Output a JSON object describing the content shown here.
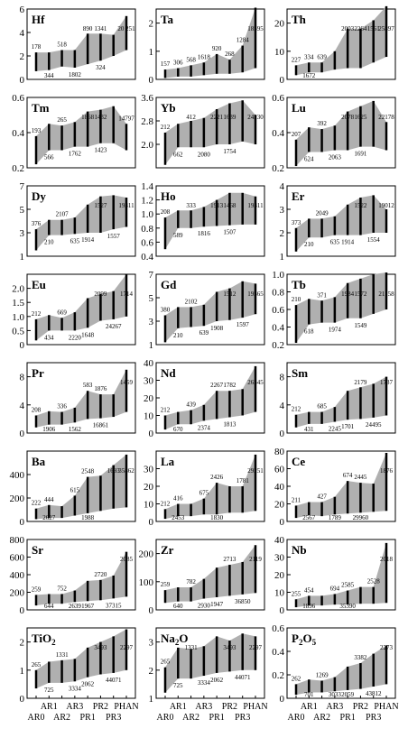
{
  "chart_data": {
    "type": "area",
    "description_layout": "8 rows x 3 columns of small range-band panels",
    "x_ticks_top": [
      "AR1",
      "AR3",
      "PR2",
      "PHAN"
    ],
    "x_ticks_bottom": [
      "AR0",
      "AR2",
      "PR1",
      "PR3"
    ],
    "x_order": [
      "AR0",
      "AR1",
      "AR2",
      "AR3",
      "PR1",
      "PR2",
      "PR3",
      "PHAN"
    ],
    "colors": {
      "band": "#b0b0b0",
      "line": "#000000"
    },
    "panels": [
      {
        "title": "Hf",
        "sub": "",
        "ylim": [
          0,
          6
        ],
        "yticks": [
          "0",
          "2",
          "4",
          "6"
        ],
        "upper": [
          2.3,
          2.3,
          2.5,
          2.5,
          3.9,
          3.9,
          3.8,
          5.4
        ],
        "lower": [
          0.7,
          0.8,
          1.1,
          1.0,
          1.3,
          1.6,
          2.0,
          2.5
        ],
        "top_labels": [
          "178",
          "518",
          "890",
          "1341",
          "20 251"
        ],
        "bottom_labels": [
          "344",
          "1802",
          "324"
        ]
      },
      {
        "title": "Ta",
        "sub": "",
        "ylim": [
          0,
          2.5
        ],
        "yticks": [
          "0",
          "1",
          "2"
        ],
        "upper": [
          0.35,
          0.4,
          0.5,
          0.6,
          0.9,
          0.7,
          1.2,
          2.55
        ],
        "lower": [
          0.05,
          0.1,
          0.1,
          0.15,
          0.2,
          0.2,
          0.25,
          0.4
        ],
        "top_labels": [
          "157",
          "306",
          "568",
          "1618",
          "920",
          "268",
          "1284",
          "18595"
        ],
        "bottom_labels": []
      },
      {
        "title": "Th",
        "sub": "",
        "ylim": [
          0,
          25
        ],
        "yticks": [
          "0",
          "10",
          "20"
        ],
        "upper": [
          5,
          6,
          6,
          10,
          18,
          18,
          21,
          26
        ],
        "lower": [
          1.5,
          2.5,
          2.5,
          3.5,
          4,
          4,
          6,
          8
        ],
        "top_labels": [
          "227",
          "334",
          "639",
          "2003",
          "2264",
          "1561",
          "25897"
        ],
        "bottom_labels": [
          "1672"
        ]
      },
      {
        "title": "Tm",
        "sub": "",
        "ylim": [
          0.2,
          0.6
        ],
        "yticks": [
          "0.2",
          "0.4",
          "0.6"
        ],
        "upper": [
          0.38,
          0.45,
          0.44,
          0.46,
          0.52,
          0.53,
          0.55,
          0.45
        ],
        "lower": [
          0.22,
          0.3,
          0.3,
          0.32,
          0.32,
          0.34,
          0.34,
          0.3
        ],
        "top_labels": [
          "193",
          "265",
          "1868",
          "1432",
          "14797"
        ],
        "bottom_labels": [
          "566",
          "1762",
          "1423"
        ]
      },
      {
        "title": "Yb",
        "sub": "",
        "ylim": [
          1.2,
          3.6
        ],
        "yticks": [
          "2.0",
          "2.8",
          "3.6"
        ],
        "upper": [
          2.4,
          2.7,
          2.8,
          2.9,
          3.2,
          3.4,
          3.5,
          3.0
        ],
        "lower": [
          1.3,
          1.9,
          1.9,
          1.9,
          2.0,
          2.0,
          2.1,
          2.0
        ],
        "top_labels": [
          "212",
          "412",
          "2221",
          "1639",
          "24230"
        ],
        "bottom_labels": [
          "662",
          "2080",
          "1754"
        ]
      },
      {
        "title": "Lu",
        "sub": "",
        "ylim": [
          0.2,
          0.6
        ],
        "yticks": [
          "0.2",
          "0.4",
          "0.6"
        ],
        "upper": [
          0.36,
          0.43,
          0.42,
          0.44,
          0.52,
          0.55,
          0.58,
          0.46
        ],
        "lower": [
          0.21,
          0.29,
          0.29,
          0.3,
          0.3,
          0.32,
          0.32,
          0.3
        ],
        "top_labels": [
          "207",
          "392",
          "2078",
          "1625",
          "22178"
        ],
        "bottom_labels": [
          "624",
          "2063",
          "1691"
        ]
      },
      {
        "title": "Dy",
        "sub": "",
        "ylim": [
          1,
          7
        ],
        "yticks": [
          "1",
          "3",
          "5",
          "7"
        ],
        "upper": [
          3.3,
          4.1,
          4.1,
          4.3,
          5.4,
          6.1,
          6.2,
          6.0
        ],
        "lower": [
          1.5,
          2.8,
          2.8,
          2.9,
          3.0,
          3.0,
          3.3,
          3.5
        ],
        "top_labels": [
          "376",
          "2107",
          "1527",
          "19311"
        ],
        "bottom_labels": [
          "210",
          "635",
          "1914",
          "1557"
        ]
      },
      {
        "title": "Ho",
        "sub": "",
        "ylim": [
          0.4,
          1.4
        ],
        "yticks": [
          "0.4",
          "0.6",
          "0.8",
          "1.0",
          "1.2",
          "1.4"
        ],
        "upper": [
          0.95,
          1.05,
          1.05,
          1.1,
          1.2,
          1.3,
          1.3,
          1.25
        ],
        "lower": [
          0.5,
          0.8,
          0.8,
          0.82,
          0.83,
          0.84,
          0.85,
          0.85
        ],
        "top_labels": [
          "208",
          "333",
          "1913",
          "1468",
          "19311"
        ],
        "bottom_labels": [
          "589",
          "1816",
          "1507"
        ]
      },
      {
        "title": "Er",
        "sub": "",
        "ylim": [
          1,
          4
        ],
        "yticks": [
          "1",
          "2",
          "3",
          "4"
        ],
        "upper": [
          2.2,
          2.6,
          2.6,
          2.7,
          3.2,
          3.5,
          3.6,
          3.0
        ],
        "lower": [
          1.2,
          1.8,
          1.8,
          1.9,
          1.9,
          1.9,
          2.0,
          2.0
        ],
        "top_labels": [
          "373",
          "2049",
          "1522",
          "19012"
        ],
        "bottom_labels": [
          "210",
          "635",
          "1914",
          "1554"
        ]
      },
      {
        "title": "Eu",
        "sub": "",
        "ylim": [
          0,
          2.5
        ],
        "yticks": [
          "0",
          "0.5",
          "1.0",
          "1.5",
          "2.0"
        ],
        "upper": [
          0.9,
          1.05,
          0.95,
          1.15,
          1.65,
          1.8,
          1.9,
          2.5
        ],
        "lower": [
          0.15,
          0.5,
          0.5,
          0.5,
          0.6,
          0.85,
          0.9,
          1.0
        ],
        "top_labels": [
          "212",
          "669",
          "2099",
          "1714"
        ],
        "bottom_labels": [
          "434",
          "2220",
          "1648",
          "24267"
        ]
      },
      {
        "title": "Gd",
        "sub": "",
        "ylim": [
          1,
          7
        ],
        "yticks": [
          "1",
          "3",
          "5",
          "7"
        ],
        "upper": [
          3.5,
          4.2,
          4.2,
          4.4,
          5.5,
          5.8,
          6.4,
          6.2
        ],
        "lower": [
          1.2,
          2.4,
          2.5,
          2.6,
          3.0,
          3.1,
          3.3,
          3.6
        ],
        "top_labels": [
          "380",
          "2102",
          "1512",
          "19565"
        ],
        "bottom_labels": [
          "210",
          "639",
          "1908",
          "1597"
        ]
      },
      {
        "title": "Tb",
        "sub": "",
        "ylim": [
          0.2,
          1.0
        ],
        "yticks": [
          "0.2",
          "0.4",
          "0.6",
          "0.8",
          "1.0"
        ],
        "upper": [
          0.65,
          0.72,
          0.7,
          0.74,
          0.9,
          0.95,
          1.0,
          1.02
        ],
        "lower": [
          0.22,
          0.43,
          0.45,
          0.45,
          0.5,
          0.5,
          0.55,
          0.6
        ],
        "top_labels": [
          "210",
          "371",
          "1984",
          "1572",
          "21158"
        ],
        "bottom_labels": [
          "618",
          "1974",
          "1549"
        ]
      },
      {
        "title": "Pr",
        "sub": "",
        "ylim": [
          0,
          10
        ],
        "yticks": [
          "0",
          "4",
          "8"
        ],
        "upper": [
          2.5,
          3.1,
          3.0,
          3.6,
          6.0,
          5.5,
          5.5,
          9.0
        ],
        "lower": [
          0.8,
          1.2,
          1.2,
          1.5,
          2.0,
          2.1,
          2.3,
          3.0
        ],
        "top_labels": [
          "208",
          "336",
          "583",
          "1876",
          "1459"
        ],
        "bottom_labels": [
          "1906",
          "1562",
          "16861"
        ]
      },
      {
        "title": "Nd",
        "sub": "",
        "ylim": [
          0,
          40
        ],
        "yticks": [
          "0",
          "10",
          "20",
          "30",
          "40"
        ],
        "upper": [
          10,
          12,
          13,
          16,
          24,
          24,
          25,
          38
        ],
        "lower": [
          2,
          5,
          5,
          7,
          8,
          9,
          10,
          12
        ],
        "top_labels": [
          "212",
          "439",
          "2267",
          "1782",
          "26545"
        ],
        "bottom_labels": [
          "670",
          "2374",
          "1813"
        ]
      },
      {
        "title": "Sm",
        "sub": "",
        "ylim": [
          0,
          10
        ],
        "yticks": [
          "0",
          "4",
          "8"
        ],
        "upper": [
          2.6,
          3.0,
          3.0,
          3.7,
          6.0,
          6.5,
          7.0,
          8.0
        ],
        "lower": [
          0.8,
          1.3,
          1.3,
          1.6,
          1.9,
          2.0,
          2.2,
          2.5
        ],
        "top_labels": [
          "212",
          "685",
          "2179",
          "1737"
        ],
        "bottom_labels": [
          "431",
          "2245",
          "1701",
          "24495"
        ]
      },
      {
        "title": "Ba",
        "sub": "",
        "ylim": [
          0,
          600
        ],
        "yticks": [
          "0",
          "200",
          "400"
        ],
        "upper": [
          110,
          140,
          130,
          220,
          380,
          390,
          480,
          570
        ],
        "lower": [
          20,
          30,
          30,
          50,
          70,
          90,
          110,
          120
        ],
        "top_labels": [
          "222",
          "444",
          "615",
          "2548",
          "1693",
          "35862"
        ],
        "bottom_labels": [
          "2627",
          "1988"
        ]
      },
      {
        "title": "La",
        "sub": "",
        "ylim": [
          0,
          40
        ],
        "yticks": [
          "0",
          "10",
          "20",
          "30"
        ],
        "upper": [
          7,
          10,
          10,
          13,
          22,
          20,
          20,
          38
        ],
        "lower": [
          1.5,
          3,
          3,
          4,
          4,
          5,
          5,
          6
        ],
        "top_labels": [
          "212",
          "416",
          "675",
          "2426",
          "1781",
          "29251"
        ],
        "bottom_labels": [
          "2453",
          "1830"
        ]
      },
      {
        "title": "Ce",
        "sub": "",
        "ylim": [
          0,
          80
        ],
        "yticks": [
          "0",
          "20",
          "40",
          "60",
          "80"
        ],
        "upper": [
          18,
          22,
          22,
          28,
          46,
          44,
          43,
          78
        ],
        "lower": [
          4,
          7,
          6,
          8,
          9,
          10,
          11,
          12
        ],
        "top_labels": [
          "211",
          "427",
          "674",
          "2445",
          "1876"
        ],
        "bottom_labels": [
          "2567",
          "1789",
          "29960"
        ]
      },
      {
        "title": "Sr",
        "sub": "",
        "ylim": [
          0,
          800
        ],
        "yticks": [
          "0",
          "200",
          "400",
          "600",
          "800"
        ],
        "upper": [
          170,
          180,
          180,
          220,
          330,
          340,
          390,
          660
        ],
        "lower": [
          50,
          70,
          70,
          90,
          100,
          110,
          130,
          150
        ],
        "top_labels": [
          "259",
          "752",
          "2720",
          "2085"
        ],
        "bottom_labels": [
          "644",
          "2639",
          "1967",
          "37315"
        ]
      },
      {
        "title": "Zr",
        "sub": "",
        "ylim": [
          0,
          250
        ],
        "yticks": [
          "0",
          "100",
          "200"
        ],
        "upper": [
          70,
          80,
          80,
          110,
          150,
          160,
          170,
          230
        ],
        "lower": [
          25,
          30,
          30,
          40,
          45,
          50,
          55,
          60
        ],
        "top_labels": [
          "259",
          "782",
          "2713",
          "2119"
        ],
        "bottom_labels": [
          "640",
          "2930",
          "1947",
          "36850"
        ]
      },
      {
        "title": "Nb",
        "sub": "",
        "ylim": [
          0,
          40
        ],
        "yticks": [
          "0",
          "10",
          "20",
          "30",
          "40"
        ],
        "upper": [
          6,
          8,
          8,
          9,
          11,
          13,
          13,
          38
        ],
        "lower": [
          1.5,
          2.5,
          2.5,
          3,
          3,
          3.5,
          3.5,
          4
        ],
        "top_labels": [
          "255",
          "454",
          "694",
          "2585",
          "2528",
          "2018"
        ],
        "bottom_labels": [
          "1896",
          "35390"
        ]
      },
      {
        "title": "TiO",
        "sub": "2",
        "ylim": [
          0,
          2.5
        ],
        "yticks": [
          "0",
          "1",
          "2"
        ],
        "upper": [
          1.0,
          1.3,
          1.35,
          1.4,
          1.8,
          2.0,
          2.2,
          2.45
        ],
        "lower": [
          0.35,
          0.55,
          0.55,
          0.6,
          0.75,
          0.85,
          0.9,
          1.0
        ],
        "top_labels": [
          "265",
          "1331",
          "3493",
          "2297"
        ],
        "bottom_labels": [
          "725",
          "3334",
          "2062",
          "44071"
        ]
      },
      {
        "title": "Na",
        "sub": "2",
        "title_suffix": "O",
        "ylim": [
          1,
          3.5
        ],
        "yticks": [
          "1",
          "2",
          "3"
        ],
        "upper": [
          2.1,
          2.8,
          2.75,
          2.85,
          3.2,
          3.05,
          3.3,
          3.2
        ],
        "lower": [
          1.2,
          1.7,
          1.7,
          1.8,
          1.9,
          1.95,
          2.0,
          2.0
        ],
        "top_labels": [
          "265",
          "1331",
          "3493",
          "2297"
        ],
        "bottom_labels": [
          "725",
          "3334",
          "2062",
          "44071"
        ]
      },
      {
        "title": "P",
        "sub": "2",
        "title_suffix": "O",
        "sub2": "5",
        "ylim": [
          0,
          0.6
        ],
        "yticks": [
          "0",
          "0.2",
          "0.4",
          "0.6"
        ],
        "upper": [
          0.12,
          0.16,
          0.15,
          0.18,
          0.27,
          0.3,
          0.38,
          0.45
        ],
        "lower": [
          0.03,
          0.05,
          0.05,
          0.06,
          0.07,
          0.08,
          0.1,
          0.12
        ],
        "top_labels": [
          "262",
          "1269",
          "3382",
          "2273"
        ],
        "bottom_labels": [
          "701",
          "3033",
          "2059",
          "43812"
        ]
      }
    ]
  }
}
